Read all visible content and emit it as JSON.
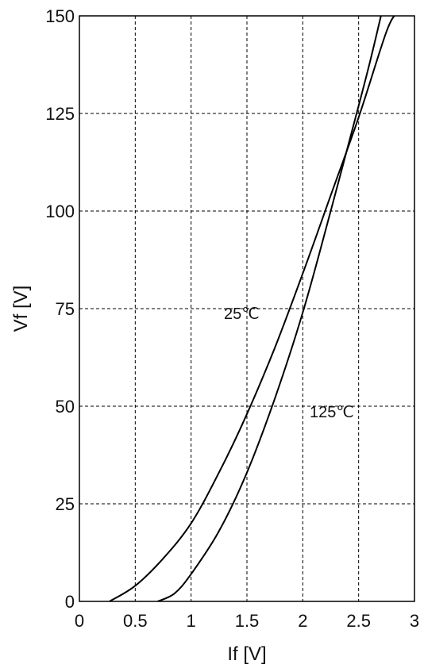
{
  "chart_data": {
    "type": "line",
    "title": "",
    "xlabel": "If [V]",
    "ylabel": "Vf [V]",
    "xlim": [
      0,
      3
    ],
    "ylim": [
      0,
      150
    ],
    "xticks": [
      0,
      0.5,
      1,
      1.5,
      2,
      2.5,
      3
    ],
    "xtick_labels": [
      "0",
      "0.5",
      "1",
      "1.5",
      "2",
      "2.5",
      "3"
    ],
    "yticks": [
      0,
      25,
      50,
      75,
      100,
      125,
      150
    ],
    "ytick_labels": [
      "0",
      "25",
      "50",
      "75",
      "100",
      "125",
      "150"
    ],
    "grid": true,
    "legend": "none",
    "series": [
      {
        "name": "25℃",
        "x": [
          0.27,
          0.5,
          0.75,
          1.0,
          1.25,
          1.5,
          1.75,
          2.0,
          2.25,
          2.5,
          2.75,
          2.85
        ],
        "y": [
          0,
          4,
          11,
          20,
          33,
          48,
          65,
          84,
          104,
          124,
          146,
          151
        ]
      },
      {
        "name": "125℃",
        "x": [
          0.7,
          0.85,
          1.0,
          1.25,
          1.5,
          1.75,
          2.0,
          2.25,
          2.5,
          2.6,
          2.7
        ],
        "y": [
          0,
          2,
          7,
          18,
          33,
          52,
          74,
          100,
          127,
          138,
          150
        ]
      }
    ],
    "annotations": [
      "25℃",
      "125℃"
    ]
  }
}
